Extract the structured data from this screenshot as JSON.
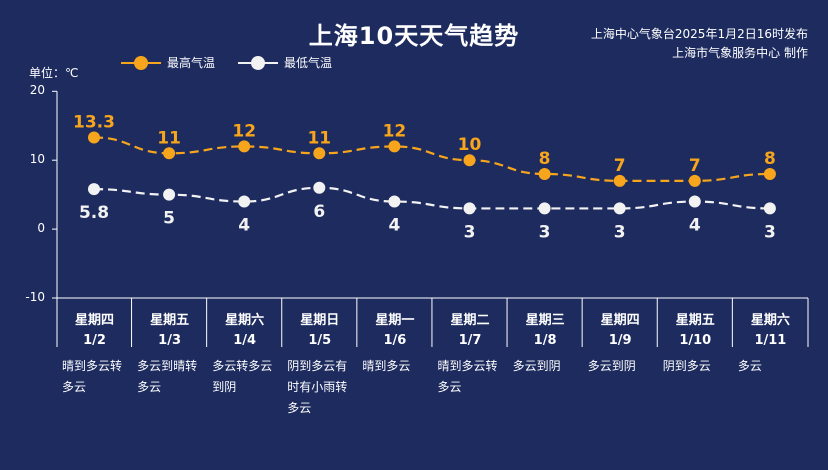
{
  "title": "上海10天天气趋势",
  "publisher": {
    "line1": "上海中心气象台2025年1月2日16时发布",
    "line2": "上海市气象服务中心 制作"
  },
  "unit_label": "单位：℃",
  "colors": {
    "background": "#1d2b5f",
    "high": "#f7a51c",
    "low": "#f2f2f2",
    "axis": "#ffffff"
  },
  "days": [
    {
      "weekday": "星期四",
      "date": "1/2",
      "weather": [
        "晴到多云转",
        "多云"
      ]
    },
    {
      "weekday": "星期五",
      "date": "1/3",
      "weather": [
        "多云到晴转",
        "多云"
      ]
    },
    {
      "weekday": "星期六",
      "date": "1/4",
      "weather": [
        "多云转多云",
        "到阴"
      ]
    },
    {
      "weekday": "星期日",
      "date": "1/5",
      "weather": [
        "阴到多云有",
        "时有小雨转",
        "多云"
      ]
    },
    {
      "weekday": "星期一",
      "date": "1/6",
      "weather": [
        "晴到多云"
      ]
    },
    {
      "weekday": "星期二",
      "date": "1/7",
      "weather": [
        "晴到多云转",
        "多云"
      ]
    },
    {
      "weekday": "星期三",
      "date": "1/8",
      "weather": [
        "多云到阴"
      ]
    },
    {
      "weekday": "星期四",
      "date": "1/9",
      "weather": [
        "多云到阴"
      ]
    },
    {
      "weekday": "星期五",
      "date": "1/10",
      "weather": [
        "阴到多云"
      ]
    },
    {
      "weekday": "星期六",
      "date": "1/11",
      "weather": [
        "多云"
      ]
    }
  ],
  "chart_data": {
    "type": "line",
    "x": [
      "1/2",
      "1/3",
      "1/4",
      "1/5",
      "1/6",
      "1/7",
      "1/8",
      "1/9",
      "1/10",
      "1/11"
    ],
    "ylim": [
      -10,
      20
    ],
    "yticks": [
      20,
      10,
      0,
      -10
    ],
    "ylabel": "单位：℃",
    "grid": false,
    "legend_position": "top-left",
    "series": [
      {
        "name": "最高气温",
        "color": "#f7a51c",
        "values": [
          13.3,
          11,
          12,
          11,
          12,
          10,
          8,
          7,
          7,
          8
        ]
      },
      {
        "name": "最低气温",
        "color": "#f2f2f2",
        "values": [
          5.8,
          5,
          4,
          6,
          4,
          3,
          3,
          3,
          4,
          3
        ]
      }
    ]
  }
}
